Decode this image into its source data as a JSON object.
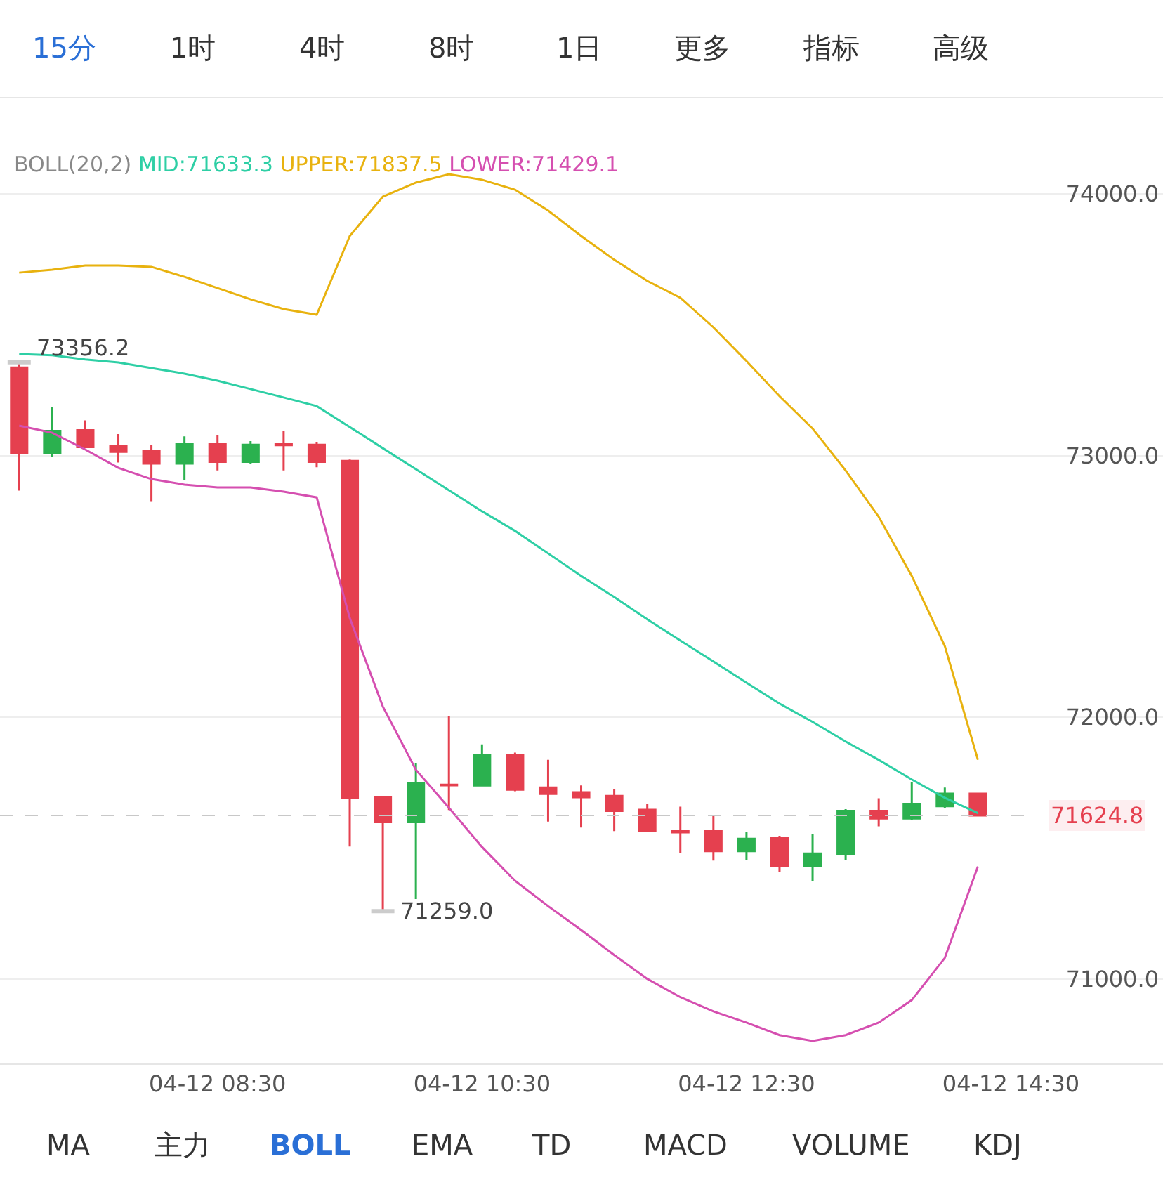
{
  "chart_data": {
    "type": "candlestick",
    "legend_title": "BOLL(20,2)",
    "categories": [
      null,
      null,
      null,
      null,
      null,
      null,
      "04-12 08:30",
      null,
      null,
      null,
      null,
      null,
      null,
      null,
      "04-12 10:30",
      null,
      null,
      null,
      null,
      null,
      null,
      null,
      "04-12 12:30",
      null,
      null,
      null,
      null,
      null,
      null,
      null,
      "04-12 14:30"
    ],
    "ohlc": [
      [
        73336,
        73356.2,
        72866,
        73011
      ],
      [
        73011,
        73184,
        72996,
        73094
      ],
      [
        73097,
        73134,
        73032,
        73032
      ],
      [
        73035,
        73082,
        72973,
        73014
      ],
      [
        73019,
        73041,
        72823,
        72969
      ],
      [
        72969,
        73073,
        72907,
        73043
      ],
      [
        73043,
        73078,
        72943,
        72976
      ],
      [
        72976,
        73055,
        72969,
        73041
      ],
      [
        73043,
        73094,
        72943,
        73040
      ],
      [
        73041,
        73050,
        72955,
        72976
      ],
      [
        72979,
        72985,
        71506,
        71690
      ],
      [
        71695,
        71697,
        71259.0,
        71599
      ],
      [
        71599,
        71824,
        71305,
        71747
      ],
      [
        71742,
        72003,
        71645,
        71740
      ],
      [
        71739,
        71896,
        71739,
        71855
      ],
      [
        71855,
        71865,
        71717,
        71723
      ],
      [
        71731,
        71837,
        71601,
        71707
      ],
      [
        71713,
        71739,
        71578,
        71694
      ],
      [
        71699,
        71726,
        71565,
        71642
      ],
      [
        71646,
        71669,
        71560,
        71564
      ],
      [
        71564,
        71658,
        71481,
        71560
      ],
      [
        71564,
        71627,
        71452,
        71488
      ],
      [
        71488,
        71562,
        71455,
        71535
      ],
      [
        71537,
        71547,
        71410,
        71431
      ],
      [
        71431,
        71552,
        71374,
        71479
      ],
      [
        71476,
        71649,
        71455,
        71642
      ],
      [
        71642,
        71690,
        71583,
        71613
      ],
      [
        71613,
        71753,
        71607,
        71669
      ],
      [
        71660,
        71731,
        71654,
        71708
      ],
      [
        71708,
        71708,
        71624.8,
        71624.8
      ],
      null
    ],
    "colors": [
      "#e5404f",
      "#2bb14f",
      "#e5404f",
      "#e5404f",
      "#e5404f",
      "#2bb14f",
      "#e5404f",
      "#2bb14f",
      "#e5404f",
      "#e5404f",
      "#e5404f",
      "#e5404f",
      "#2bb14f",
      "#e5404f",
      "#2bb14f",
      "#e5404f",
      "#e5404f",
      "#e5404f",
      "#e5404f",
      "#e5404f",
      "#e5404f",
      "#e5404f",
      "#2bb14f",
      "#e5404f",
      "#2bb14f",
      "#2bb14f",
      "#e5404f",
      "#2bb14f",
      "#2bb14f",
      "#e5404f",
      null
    ],
    "series": [
      {
        "type": "line",
        "name": "MID:71633.3",
        "color": "#2ecfa5",
        "values": [
          73388,
          73383,
          73367,
          73356,
          73334,
          73313,
          73286,
          73254,
          73222,
          73189,
          73109,
          73028,
          72948,
          72867,
          72787,
          72712,
          72626,
          72540,
          72459,
          72374,
          72293,
          72213,
          72132,
          72052,
          71982,
          71907,
          71837,
          71762,
          71692,
          71633.3,
          null
        ]
      },
      {
        "type": "line",
        "name": "UPPER:71837.5",
        "color": "#e8b20f",
        "values": [
          73699,
          73710,
          73726,
          73726,
          73721,
          73683,
          73640,
          73597,
          73560,
          73538,
          73839,
          73989,
          74043,
          74075,
          74054,
          74016,
          73936,
          73839,
          73748,
          73667,
          73603,
          73490,
          73361,
          73227,
          73103,
          72943,
          72766,
          72540,
          72272,
          71837.5,
          null
        ]
      },
      {
        "type": "line",
        "name": "LOWER:71429.1",
        "color": "#d54fb0",
        "values": [
          73114,
          73087,
          73023,
          72953,
          72910,
          72889,
          72878,
          72878,
          72862,
          72840,
          72379,
          72041,
          71799,
          71654,
          71504,
          71375,
          71278,
          71187,
          71091,
          71000,
          70930,
          70876,
          70833,
          70785,
          70763,
          70785,
          70833,
          70919,
          71080,
          71429.1,
          null
        ]
      }
    ],
    "ylim": [
      70677,
      74365
    ],
    "yticks": [
      {
        "value": 71000,
        "label": "71000.0"
      },
      {
        "value": 72000,
        "label": "72000.0"
      },
      {
        "value": 73000,
        "label": "73000.0"
      },
      {
        "value": 74000,
        "label": "74000.0"
      }
    ],
    "grid": "y",
    "ref_lines": [
      {
        "axis": "y",
        "value": 71624.8,
        "label": "71624.8",
        "color": "#c8c8c8",
        "line_style": "dashed"
      }
    ],
    "annotations": [
      "73356.2",
      "71259.0",
      "15分",
      "1时",
      "4时",
      "8时",
      "1日",
      "更多",
      "指标",
      "高级",
      "MA",
      "主力",
      "BOLL",
      "EMA",
      "TD",
      "MACD",
      "VOLUME",
      "KDJ"
    ]
  }
}
